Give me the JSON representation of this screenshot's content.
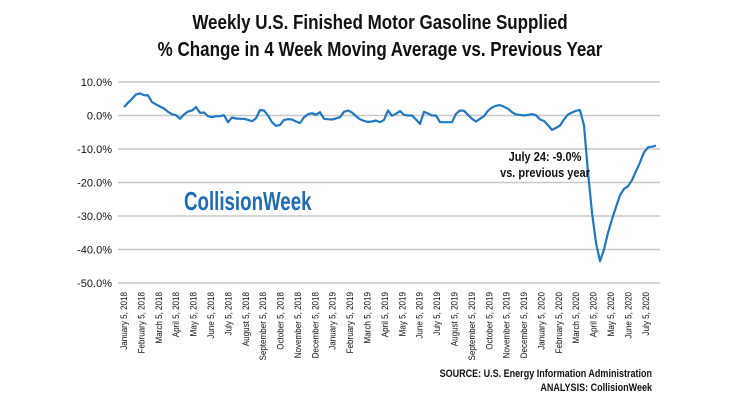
{
  "chart_data": {
    "type": "line",
    "title": "Weekly U.S. Finished Motor Gasoline Supplied",
    "subtitle": "% Change in 4 Week Moving Average vs. Previous Year",
    "xlabel": "",
    "ylabel": "",
    "ylim": [
      -50,
      10
    ],
    "y_ticks": [
      "10.0%",
      "0.0%",
      "-10.0%",
      "-20.0%",
      "-30.0%",
      "-40.0%",
      "-50.0%"
    ],
    "y_tick_values": [
      10,
      0,
      -10,
      -20,
      -30,
      -40,
      -50
    ],
    "grid": "horizontal",
    "x_tick_labels": [
      "January 5, 2018",
      "February 5, 2018",
      "March 5, 2018",
      "April 5, 2018",
      "May 5, 2018",
      "June 5, 2018",
      "July 5, 2018",
      "August 5, 2018",
      "September 5, 2018",
      "October 5, 2018",
      "November 5, 2018",
      "December 5, 2018",
      "January 5, 2019",
      "February 5, 2019",
      "March 5, 2019",
      "April 5, 2019",
      "May 5, 2019",
      "June 5, 2019",
      "July 5, 2019",
      "August 5, 2019",
      "September 5, 2019",
      "October 5, 2019",
      "November 5, 2019",
      "December 5, 2019",
      "January 5, 2020",
      "February 5, 2020",
      "March 5, 2020",
      "April 5, 2020",
      "May 5, 2020",
      "June 5, 2020",
      "July 5, 2020"
    ],
    "series": [
      {
        "color": "#1f78c1",
        "values": [
          2.5,
          3.8,
          5,
          6.3,
          6.6,
          6.1,
          6,
          4,
          3.3,
          2.7,
          2.1,
          1.1,
          0.4,
          0.1,
          -1,
          0.3,
          1.2,
          1.5,
          2.5,
          0.8,
          0.9,
          -0.2,
          -0.5,
          -0.2,
          -0.2,
          0.1,
          -2,
          -0.6,
          -0.9,
          -1,
          -1,
          -1.3,
          -1.7,
          -0.8,
          1.6,
          1.5,
          0,
          -2,
          -3.1,
          -2.8,
          -1.3,
          -1.1,
          -1.2,
          -1.8,
          -2.3,
          -0.5,
          0.4,
          0.7,
          0.2,
          1,
          -1,
          -1.1,
          -1.2,
          -0.9,
          -0.5,
          1.1,
          1.5,
          0.9,
          -0.2,
          -1.1,
          -1.6,
          -1.9,
          -1.8,
          -1.5,
          -2,
          -1.3,
          1.5,
          -0.1,
          0.5,
          1.3,
          0.2,
          0,
          0,
          -1.2,
          -2.5,
          1.1,
          0.6,
          0,
          0,
          -2,
          -2,
          -2,
          -2,
          0.5,
          1.5,
          1.4,
          0.2,
          -1,
          -1.8,
          -1,
          -0.2,
          1.4,
          2.4,
          2.9,
          3.1,
          2.6,
          2,
          1,
          0.3,
          0.2,
          0,
          0.2,
          0.4,
          0.1,
          -1.2,
          -1.6,
          -2.9,
          -4.3,
          -3.7,
          -3,
          -1.2,
          0.3,
          0.9,
          1.4,
          1.6,
          -3,
          -17,
          -29,
          -38,
          -43.5,
          -40,
          -35,
          -31,
          -27.3,
          -23.8,
          -21.9,
          -21.1,
          -19.3,
          -16.6,
          -14,
          -11,
          -9.5,
          -9.3,
          -9.0
        ]
      }
    ],
    "annotation": [
      "July 24: -9.0%",
      "vs. previous year"
    ]
  },
  "logo": "CollisionWeek",
  "source": "SOURCE: U.S. Energy Information Administration",
  "analysis": "ANALYSIS: CollisionWeek"
}
